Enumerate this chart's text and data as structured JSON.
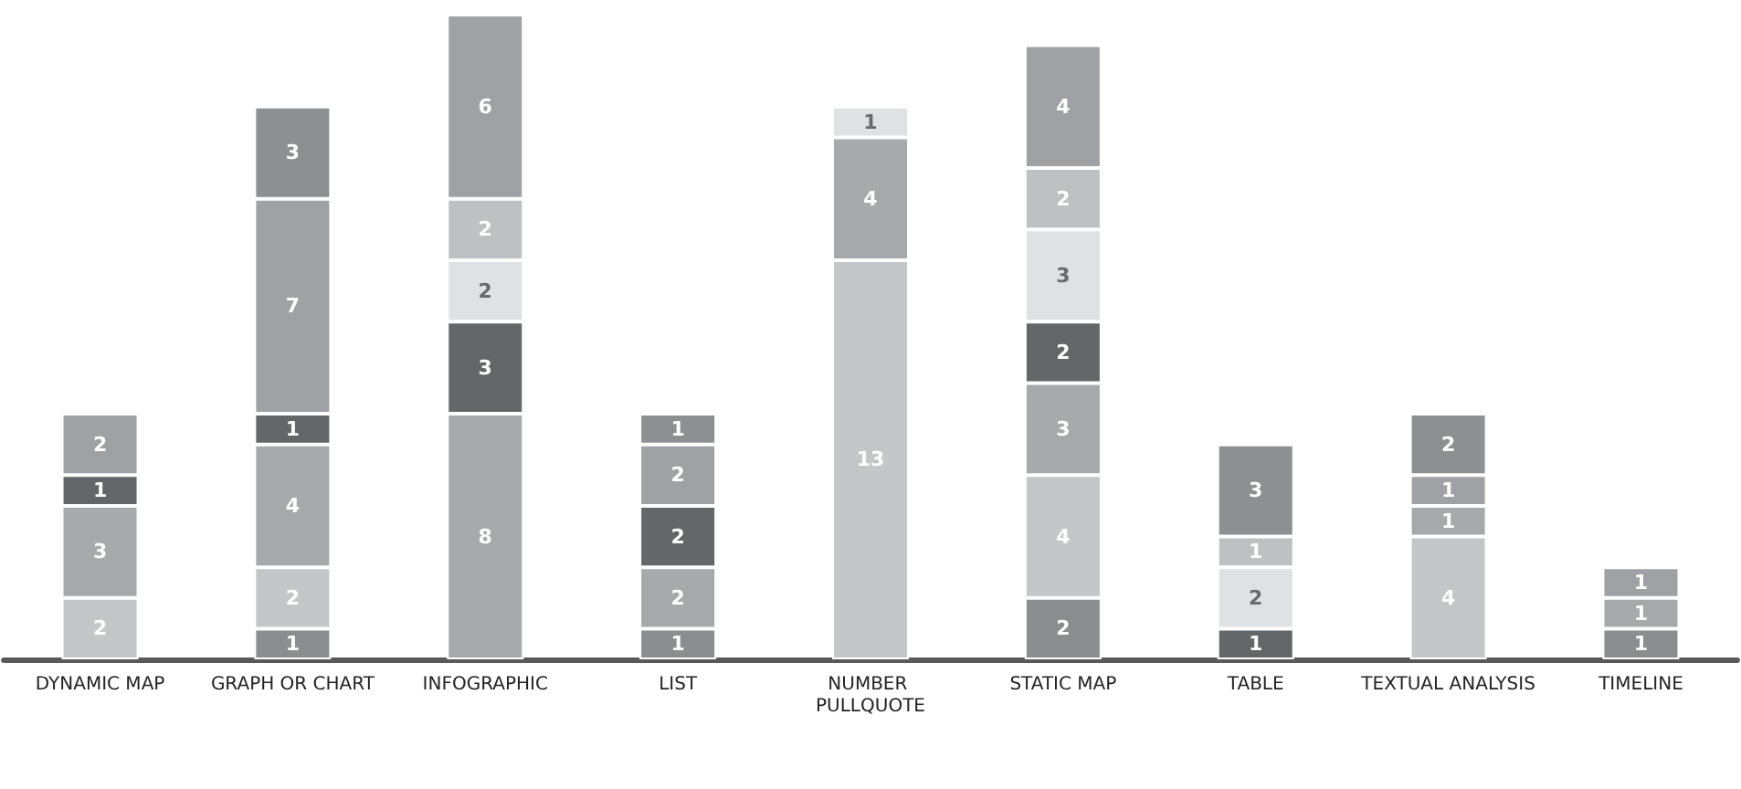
{
  "chart_data": {
    "type": "bar",
    "stacked": true,
    "data_labels": true,
    "legend": false,
    "grid": false,
    "tick_labels": "x",
    "ylim": [
      0,
      21
    ],
    "categories": [
      "DYNAMIC MAP",
      "GRAPH OR CHART",
      "INFOGRAPHIC",
      "LIST",
      "NUMBER PULLQUOTE",
      "STATIC MAP",
      "TABLE",
      "TEXTUAL ANALYSIS",
      "TIMELINE"
    ],
    "series": [
      {
        "color": "#8c8d8f",
        "values": [
          null,
          1,
          null,
          1,
          null,
          2,
          null,
          null,
          1
        ]
      },
      {
        "color": "#c5c6c8",
        "values": [
          2,
          2,
          null,
          null,
          13,
          4,
          null,
          4,
          null
        ]
      },
      {
        "color": "#a8a9ab",
        "values": [
          3,
          4,
          8,
          2,
          4,
          3,
          null,
          1,
          1
        ]
      },
      {
        "color": "#656668",
        "values": [
          1,
          1,
          3,
          2,
          null,
          2,
          1,
          null,
          null
        ]
      },
      {
        "color": "#e0e1e2",
        "values": [
          null,
          null,
          2,
          null,
          1,
          3,
          2,
          null,
          null
        ]
      },
      {
        "color": "#bfc0c2",
        "values": [
          null,
          null,
          2,
          null,
          null,
          2,
          1,
          null,
          null
        ]
      },
      {
        "color": "#a0a1a4",
        "values": [
          2,
          7,
          6,
          2,
          null,
          4,
          null,
          1,
          1
        ]
      },
      {
        "color": "#8e8f91",
        "values": [
          null,
          3,
          null,
          1,
          null,
          null,
          3,
          2,
          null
        ]
      }
    ]
  }
}
